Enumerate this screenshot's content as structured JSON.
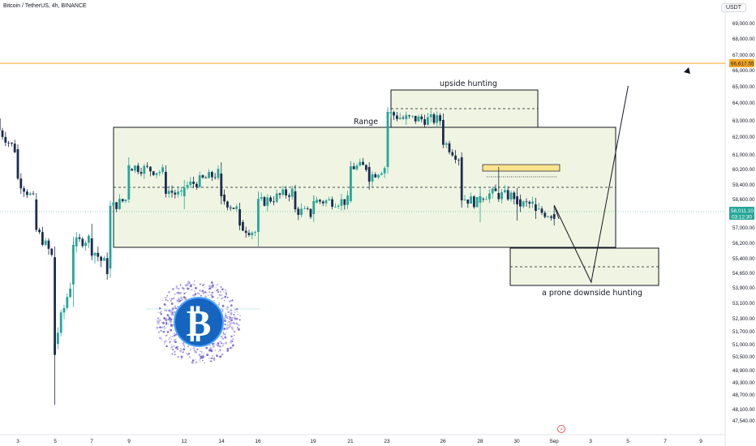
{
  "header": {
    "title": "Bitcoin / TetherUS, 4h, BINANCE",
    "currency_button": "USDT"
  },
  "colors": {
    "up": "#26a69a",
    "down": "#1e2c4f",
    "horizontal_line": "#f5a623",
    "current_price_line": "#26a69a",
    "box_fill": "#eff5e2",
    "zone_fill": "#fbe38e"
  },
  "chart_data": {
    "type": "candlestick",
    "title": "Bitcoin / TetherUS, 4h, BINANCE",
    "x_tick_labels": [
      "3",
      "5",
      "7",
      "9",
      "12",
      "14",
      "16",
      "19",
      "21",
      "23",
      "26",
      "28",
      "30",
      "Sep",
      "3",
      "5",
      "7",
      "9"
    ],
    "y_tick_labels": [
      "69,000.00",
      "68,000.00",
      "67,000.00",
      "66,000.00",
      "65,000.00",
      "64,000.00",
      "63,000.00",
      "62,000.00",
      "61,000.00",
      "60,200.00",
      "59,400.00",
      "58,600.00",
      "57,000.00",
      "56,200.00",
      "55,400.00",
      "54,650.00",
      "53,900.00",
      "53,100.00",
      "52,300.00",
      "51,700.00",
      "51,000.00",
      "50,500.00",
      "49,900.00",
      "49,300.00",
      "48,700.00",
      "48,100.00",
      "47,540.00"
    ],
    "horizontal_line_price": "66,617.55",
    "current_price": "58,011.10",
    "countdown": "03:12:30",
    "annotations": [
      "Range",
      "upside hunting",
      "a prone downside hunting"
    ],
    "projection": [
      {
        "date": "Sep 1",
        "price": 58850
      },
      {
        "date": "Sep 3",
        "price": 54700
      },
      {
        "date": "Sep 5",
        "price": 66200
      }
    ],
    "candles_sampled": [
      {
        "x": "Aug 2",
        "o": 64200,
        "h": 65300,
        "l": 63600,
        "c": 63700
      },
      {
        "x": "Aug 3",
        "o": 62300,
        "h": 62600,
        "l": 60400,
        "c": 60700
      },
      {
        "x": "Aug 4",
        "o": 59200,
        "h": 59600,
        "l": 57200,
        "c": 57600
      },
      {
        "x": "Aug 5",
        "o": 55800,
        "h": 56300,
        "l": 49300,
        "c": 51500
      },
      {
        "x": "Aug 6",
        "o": 54600,
        "h": 56900,
        "l": 53600,
        "c": 56400
      },
      {
        "x": "Aug 7",
        "o": 56800,
        "h": 57700,
        "l": 55800,
        "c": 56400
      },
      {
        "x": "Aug 8",
        "o": 55300,
        "h": 58900,
        "l": 54900,
        "c": 58600
      },
      {
        "x": "Aug 9",
        "o": 59200,
        "h": 61800,
        "l": 59000,
        "c": 61300
      },
      {
        "x": "Aug 11",
        "o": 60900,
        "h": 61300,
        "l": 59600,
        "c": 59900
      },
      {
        "x": "Aug 12",
        "o": 59400,
        "h": 60400,
        "l": 58600,
        "c": 59900
      },
      {
        "x": "Aug 14",
        "o": 60800,
        "h": 61500,
        "l": 58900,
        "c": 59400
      },
      {
        "x": "Aug 15",
        "o": 58600,
        "h": 59000,
        "l": 57300,
        "c": 57600
      },
      {
        "x": "Aug 16",
        "o": 57200,
        "h": 59700,
        "l": 56300,
        "c": 58900
      },
      {
        "x": "Aug 18",
        "o": 59700,
        "h": 60100,
        "l": 58400,
        "c": 58600
      },
      {
        "x": "Aug 19",
        "o": 58300,
        "h": 59400,
        "l": 57800,
        "c": 59100
      },
      {
        "x": "Aug 21",
        "o": 59100,
        "h": 61500,
        "l": 59000,
        "c": 61200
      },
      {
        "x": "Aug 22",
        "o": 61200,
        "h": 61500,
        "l": 59800,
        "c": 60500
      },
      {
        "x": "Aug 23",
        "o": 61200,
        "h": 64900,
        "l": 60800,
        "c": 64600
      },
      {
        "x": "Aug 24",
        "o": 64200,
        "h": 64500,
        "l": 63800,
        "c": 64200
      },
      {
        "x": "Aug 26",
        "o": 64100,
        "h": 64500,
        "l": 62800,
        "c": 63000
      },
      {
        "x": "Aug 27",
        "o": 61800,
        "h": 62100,
        "l": 58700,
        "c": 59400
      },
      {
        "x": "Aug 28",
        "o": 59000,
        "h": 60000,
        "l": 57800,
        "c": 59400
      },
      {
        "x": "Aug 29",
        "o": 59600,
        "h": 61200,
        "l": 59200,
        "c": 59500
      },
      {
        "x": "Aug 30",
        "o": 59400,
        "h": 59900,
        "l": 57900,
        "c": 58900
      },
      {
        "x": "Aug 31",
        "o": 58900,
        "h": 59300,
        "l": 58000,
        "c": 58500
      },
      {
        "x": "Sep 1",
        "o": 58300,
        "h": 58800,
        "l": 57600,
        "c": 58011
      }
    ]
  }
}
